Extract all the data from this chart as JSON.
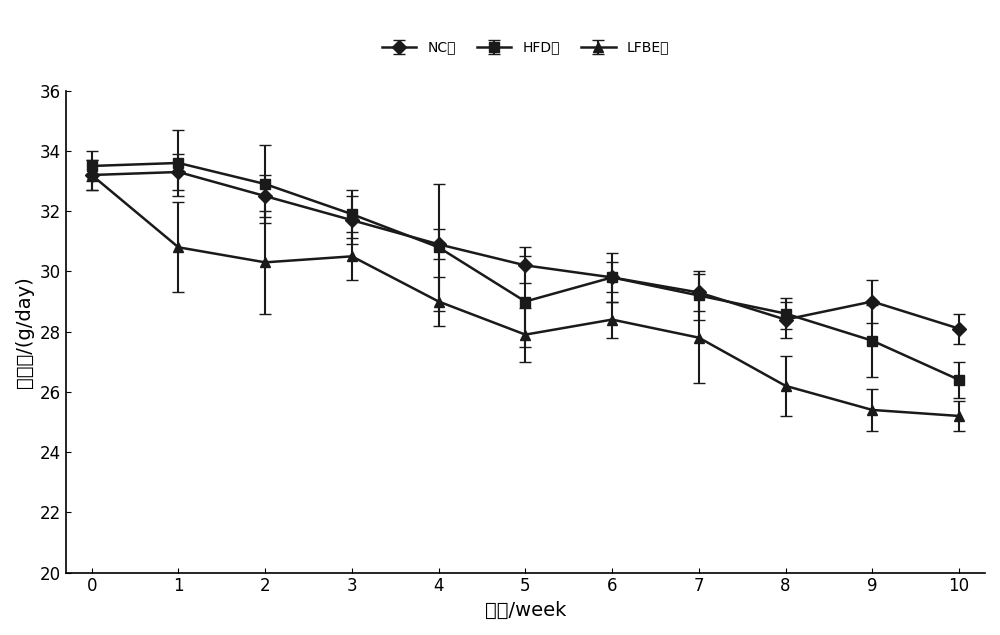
{
  "weeks": [
    0,
    1,
    2,
    3,
    4,
    5,
    6,
    7,
    8,
    9,
    10
  ],
  "NC": [
    33.2,
    33.3,
    32.5,
    31.7,
    30.9,
    30.2,
    29.8,
    29.3,
    28.4,
    29.0,
    28.1
  ],
  "NC_err": [
    0.5,
    0.6,
    0.7,
    0.8,
    0.5,
    0.6,
    0.5,
    0.6,
    0.6,
    0.7,
    0.5
  ],
  "HFD": [
    33.5,
    33.6,
    32.9,
    31.9,
    30.8,
    29.0,
    29.8,
    29.2,
    28.6,
    27.7,
    26.4
  ],
  "HFD_err": [
    0.5,
    1.1,
    1.3,
    0.8,
    2.1,
    1.5,
    0.8,
    0.8,
    0.5,
    1.2,
    0.6
  ],
  "LFBE": [
    33.2,
    30.8,
    30.3,
    30.5,
    29.0,
    27.9,
    28.4,
    27.8,
    26.2,
    25.4,
    25.2
  ],
  "LFBE_err": [
    0.5,
    1.5,
    1.7,
    0.8,
    0.8,
    0.9,
    0.6,
    1.5,
    1.0,
    0.7,
    0.5
  ],
  "ylim": [
    20,
    36
  ],
  "yticks": [
    20,
    22,
    24,
    26,
    28,
    30,
    32,
    34,
    36
  ],
  "xlabel": "时间/week",
  "ylabel": "摄食量/(g/day)",
  "legend_labels": [
    "NC组",
    "HFD组",
    "LFBE组"
  ],
  "line_color": "#1a1a1a",
  "marker_NC": "D",
  "marker_HFD": "s",
  "marker_LFBE": "^",
  "markersize": 7,
  "linewidth": 1.8,
  "capsize": 4,
  "elinewidth": 1.5,
  "font_size_label": 14,
  "font_size_tick": 12,
  "font_size_legend": 13
}
